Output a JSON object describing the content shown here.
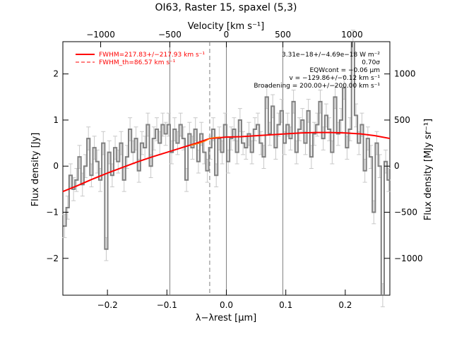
{
  "chart_data": {
    "type": "line",
    "title": "OI63, Raster 15, spaxel (5,3)",
    "xlabel": "λ−λrest [μm]",
    "ylabel_left": "Flux density [Jy]",
    "ylabel_right": "Flux density [MJy sr⁻¹]",
    "xlabel_top": "Velocity [km s⁻¹]",
    "xlim": [
      -0.275,
      0.275
    ],
    "ylim": [
      -2.8,
      2.7
    ],
    "xticks": [
      -0.2,
      -0.1,
      0.0,
      0.1,
      0.2
    ],
    "xtick_labels": [
      "−0.2",
      "−0.1",
      "0.0",
      "0.1",
      "0.2"
    ],
    "yticks": [
      -2,
      -1,
      0,
      1,
      2
    ],
    "ytick_labels": [
      "−2",
      "−1",
      "0",
      "1",
      "2"
    ],
    "top_ticks_x": [
      -0.2114,
      -0.0951,
      0.0,
      0.0951,
      0.2114
    ],
    "top_tick_labels": [
      "−1000",
      "−500",
      "0",
      "500",
      "1000"
    ],
    "right_ticks_y": [
      -2.0,
      -1.0,
      0.0,
      1.0,
      2.0
    ],
    "right_tick_labels": [
      "−1000",
      "−500",
      "0",
      "500",
      "1000"
    ],
    "vertical_lines": [
      -0.095,
      0.0,
      0.095
    ],
    "dashed_vertical": -0.028,
    "legend": {
      "position": "top-left",
      "entries": [
        {
          "label": "FWHM=217.83+/−217.93 km s⁻¹",
          "style": "solid",
          "color": "#ff0000"
        },
        {
          "label": "FWHM_th=86.57 km s⁻¹",
          "style": "dashed",
          "color": "#ff0000"
        }
      ]
    },
    "annotations": [
      "3.31e−18+/−4.69e−18 W m⁻²",
      "0.70σ",
      "EQWcont = −0.06 μm",
      "v = −129.86+/−0.12 km s⁻¹",
      "Broadening = 200.00+/−200.00 km s⁻¹"
    ],
    "series": [
      {
        "name": "data",
        "color": "#808080",
        "style": "step",
        "x": [
          -0.272,
          -0.267,
          -0.262,
          -0.257,
          -0.252,
          -0.247,
          -0.242,
          -0.237,
          -0.232,
          -0.227,
          -0.222,
          -0.217,
          -0.212,
          -0.207,
          -0.202,
          -0.197,
          -0.192,
          -0.187,
          -0.182,
          -0.177,
          -0.172,
          -0.167,
          -0.162,
          -0.157,
          -0.152,
          -0.147,
          -0.142,
          -0.137,
          -0.132,
          -0.127,
          -0.122,
          -0.117,
          -0.112,
          -0.107,
          -0.102,
          -0.097,
          -0.092,
          -0.087,
          -0.082,
          -0.077,
          -0.072,
          -0.067,
          -0.062,
          -0.057,
          -0.052,
          -0.047,
          -0.042,
          -0.037,
          -0.032,
          -0.027,
          -0.022,
          -0.017,
          -0.012,
          -0.007,
          -0.002,
          0.003,
          0.008,
          0.013,
          0.018,
          0.023,
          0.028,
          0.033,
          0.038,
          0.043,
          0.048,
          0.053,
          0.058,
          0.063,
          0.068,
          0.073,
          0.078,
          0.083,
          0.088,
          0.093,
          0.098,
          0.103,
          0.108,
          0.113,
          0.118,
          0.123,
          0.128,
          0.133,
          0.138,
          0.143,
          0.148,
          0.153,
          0.158,
          0.163,
          0.168,
          0.173,
          0.178,
          0.183,
          0.188,
          0.193,
          0.198,
          0.203,
          0.208,
          0.213,
          0.218,
          0.223,
          0.228,
          0.233,
          0.238,
          0.243,
          0.248,
          0.253,
          0.258,
          0.263,
          0.268,
          0.273
        ],
        "values": [
          -1.3,
          -0.9,
          -0.2,
          -0.5,
          -0.3,
          0.2,
          -0.4,
          0.0,
          0.6,
          -0.2,
          0.4,
          0.1,
          -0.3,
          0.5,
          -1.8,
          0.3,
          -0.2,
          0.4,
          0.1,
          0.5,
          -0.3,
          0.2,
          0.8,
          0.3,
          0.6,
          -0.1,
          0.5,
          0.4,
          0.9,
          0.0,
          0.6,
          0.8,
          0.5,
          0.9,
          0.7,
          0.9,
          0.3,
          0.8,
          0.5,
          0.9,
          0.6,
          -0.3,
          0.7,
          0.4,
          0.8,
          0.1,
          0.7,
          0.3,
          -0.1,
          0.4,
          0.8,
          -0.2,
          0.6,
          0.3,
          0.9,
          0.1,
          0.6,
          0.8,
          0.3,
          1.0,
          0.5,
          0.4,
          0.7,
          0.3,
          0.8,
          0.9,
          0.5,
          0.2,
          1.5,
          0.7,
          1.3,
          0.4,
          0.9,
          1.2,
          0.5,
          0.9,
          0.6,
          1.4,
          0.3,
          0.8,
          1.0,
          0.5,
          1.2,
          0.2,
          0.7,
          0.9,
          1.4,
          0.6,
          1.1,
          0.8,
          0.3,
          1.5,
          0.7,
          1.0,
          1.7,
          0.4,
          0.8,
          2.7,
          1.1,
          0.5,
          0.9,
          -0.1,
          0.6,
          0.2,
          -1.0,
          0.5,
          0.0,
          -2.8,
          0.1,
          -0.3
        ],
        "err": 0.25
      },
      {
        "name": "fit",
        "color": "#ff0000",
        "style": "line",
        "x": [
          -0.275,
          -0.25,
          -0.225,
          -0.2,
          -0.175,
          -0.15,
          -0.125,
          -0.1,
          -0.075,
          -0.05,
          -0.028,
          0.0,
          0.025,
          0.05,
          0.075,
          0.1,
          0.125,
          0.15,
          0.175,
          0.2,
          0.225,
          0.25,
          0.275
        ],
        "values": [
          -0.55,
          -0.42,
          -0.28,
          -0.15,
          -0.03,
          0.09,
          0.2,
          0.3,
          0.4,
          0.5,
          0.6,
          0.63,
          0.64,
          0.66,
          0.68,
          0.7,
          0.72,
          0.73,
          0.73,
          0.72,
          0.7,
          0.66,
          0.6
        ]
      },
      {
        "name": "thermal",
        "color": "#ff6a00",
        "style": "line",
        "x": [
          -0.06,
          -0.045,
          -0.035,
          -0.028,
          -0.02,
          -0.01
        ],
        "values": [
          0.45,
          0.5,
          0.55,
          0.6,
          0.62,
          0.63
        ]
      }
    ]
  }
}
